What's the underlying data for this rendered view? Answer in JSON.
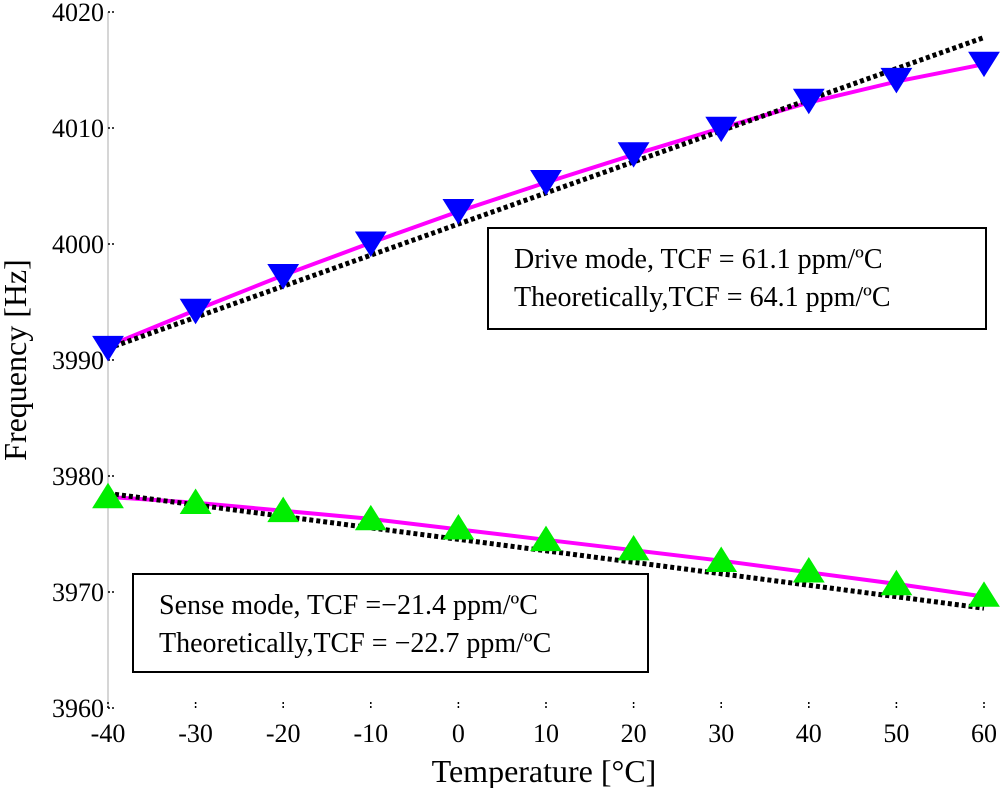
{
  "chart_data": {
    "type": "line",
    "xlabel": "Temperature [°C]",
    "ylabel": "Frequency [Hz]",
    "xlim": [
      -40,
      60
    ],
    "ylim": [
      3960,
      4020
    ],
    "x_ticks": [
      -40,
      -30,
      -20,
      -10,
      0,
      10,
      20,
      30,
      40,
      50,
      60
    ],
    "y_ticks": [
      3960,
      3970,
      3980,
      3990,
      4000,
      4010,
      4020
    ],
    "series": [
      {
        "name": "Drive mode fit",
        "style": "solid",
        "color": "#ff00ff",
        "x": [
          -40,
          -30,
          -20,
          -10,
          0,
          10,
          20,
          30,
          40,
          50,
          60
        ],
        "values": [
          3991.2,
          3994.3,
          3997.3,
          4000.1,
          4002.8,
          4005.3,
          4007.7,
          4010.0,
          4012.2,
          4014.0,
          4015.5
        ]
      },
      {
        "name": "Drive mode measured",
        "style": "marker-triangle-down",
        "color": "#0000ff",
        "x": [
          -40,
          -30,
          -20,
          -10,
          0,
          10,
          20,
          30,
          40,
          50,
          60
        ],
        "values": [
          3991.0,
          3994.2,
          3997.2,
          4000.0,
          4002.8,
          4005.3,
          4007.7,
          4009.9,
          4012.3,
          4014.1,
          4015.5
        ]
      },
      {
        "name": "Drive mode theoretical",
        "style": "dotted",
        "color": "#000000",
        "x": [
          -40,
          60
        ],
        "values": [
          3991.0,
          4017.8
        ]
      },
      {
        "name": "Sense mode fit",
        "style": "solid",
        "color": "#ff00ff",
        "x": [
          -40,
          -30,
          -20,
          -10,
          0,
          10,
          20,
          30,
          40,
          50,
          60
        ],
        "values": [
          3978.2,
          3977.7,
          3977.0,
          3976.3,
          3975.4,
          3974.5,
          3973.6,
          3972.7,
          3971.7,
          3970.7,
          3969.6
        ]
      },
      {
        "name": "Sense mode measured",
        "style": "marker-triangle-up",
        "color": "#00ee00",
        "x": [
          -40,
          -30,
          -20,
          -10,
          0,
          10,
          20,
          30,
          40,
          50,
          60
        ],
        "values": [
          3978.3,
          3977.8,
          3977.1,
          3976.4,
          3975.6,
          3974.6,
          3973.8,
          3972.8,
          3971.9,
          3970.8,
          3969.8
        ]
      },
      {
        "name": "Sense mode theoretical",
        "style": "dotted",
        "color": "#000000",
        "x": [
          -40,
          60
        ],
        "values": [
          3978.5,
          3968.6
        ]
      }
    ],
    "annotations": {
      "drive": [
        "Drive mode, TCF = 61.1 ppm/ºC",
        "Theoretically,TCF = 64.1 ppm/ºC"
      ],
      "sense": [
        "Sense mode, TCF =−21.4 ppm/ºC",
        "Theoretically,TCF = −22.7 ppm/ºC"
      ]
    }
  }
}
